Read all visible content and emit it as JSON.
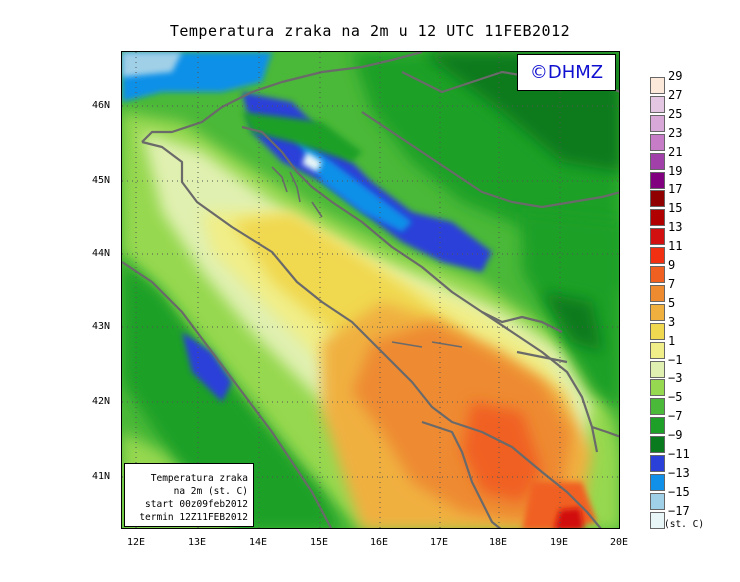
{
  "title": "Temperatura zraka na 2m u 12 UTC 11FEB2012",
  "logo": "©DHMZ",
  "info_box": [
    "Temperatura zraka",
    "na 2m (st. C)",
    "start 00z09feb2012",
    "termin 12Z11FEB2012"
  ],
  "lat_labels": [
    "46N",
    "45N",
    "44N",
    "43N",
    "42N",
    "41N"
  ],
  "lon_labels": [
    "12E",
    "13E",
    "14E",
    "15E",
    "16E",
    "17E",
    "18E",
    "19E",
    "20E"
  ],
  "legend": {
    "unit": "(st. C)",
    "labels": [
      "29",
      "27",
      "25",
      "23",
      "21",
      "19",
      "17",
      "15",
      "13",
      "11",
      "9",
      "7",
      "5",
      "3",
      "1",
      "−1",
      "−3",
      "−5",
      "−7",
      "−9",
      "−11",
      "−13",
      "−15",
      "−17"
    ],
    "colors": [
      "#fde9d9",
      "#e2c6e2",
      "#d7a8d8",
      "#c77cc8",
      "#a040a8",
      "#800080",
      "#900000",
      "#b00000",
      "#d21010",
      "#f03010",
      "#f06020",
      "#ee8a30",
      "#f0b040",
      "#f0d850",
      "#f0ee88",
      "#e0f0b0",
      "#96d850",
      "#4ab838",
      "#1ea028",
      "#0a7a1e",
      "#2a40d8",
      "#1090e8",
      "#a0d0e8",
      "#e8f6f8"
    ]
  },
  "colors": {
    "land_edge": "#6a6a6a",
    "grid": "#555555",
    "logo_text": "#1010d0"
  }
}
